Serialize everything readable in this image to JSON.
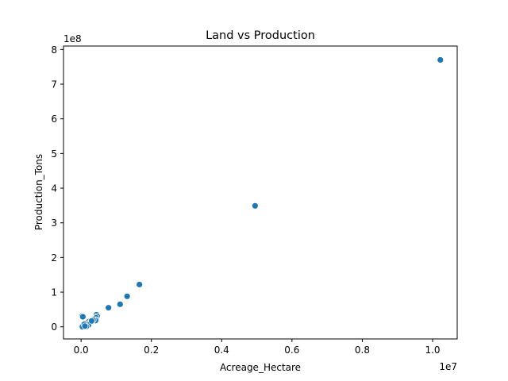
{
  "chart_data": {
    "type": "scatter",
    "title": "Land vs Production",
    "xlabel": "Acreage_Hectare",
    "ylabel": "Production_Tons",
    "x_offset_label": "1e7",
    "y_offset_label": "1e8",
    "xlim": [
      -0.05,
      1.07
    ],
    "ylim": [
      -0.35,
      8.1
    ],
    "x_ticks": [
      0.0,
      0.2,
      0.4,
      0.6,
      0.8,
      1.0
    ],
    "x_tick_labels": [
      "0.0",
      "0.2",
      "0.4",
      "0.6",
      "0.8",
      "1.0"
    ],
    "y_ticks": [
      0,
      1,
      2,
      3,
      4,
      5,
      6,
      7,
      8
    ],
    "y_tick_labels": [
      "0",
      "1",
      "2",
      "3",
      "4",
      "5",
      "6",
      "7",
      "8"
    ],
    "grid": false,
    "marker_color": "#1f77b4",
    "points": [
      {
        "x": 1.022,
        "y": 7.7
      },
      {
        "x": 0.495,
        "y": 3.49
      },
      {
        "x": 0.166,
        "y": 1.22
      },
      {
        "x": 0.131,
        "y": 0.88
      },
      {
        "x": 0.111,
        "y": 0.65
      },
      {
        "x": 0.078,
        "y": 0.55
      },
      {
        "x": 0.044,
        "y": 0.35
      },
      {
        "x": 0.046,
        "y": 0.3
      },
      {
        "x": 0.043,
        "y": 0.26
      },
      {
        "x": 0.043,
        "y": 0.2
      },
      {
        "x": 0.041,
        "y": 0.18
      },
      {
        "x": 0.003,
        "y": 0.31
      },
      {
        "x": 0.005,
        "y": 0.29
      },
      {
        "x": 0.002,
        "y": 0.01
      },
      {
        "x": 0.004,
        "y": 0.0
      },
      {
        "x": 0.013,
        "y": 0.03
      },
      {
        "x": 0.016,
        "y": 0.08
      },
      {
        "x": 0.018,
        "y": 0.12
      },
      {
        "x": 0.022,
        "y": 0.15
      },
      {
        "x": 0.026,
        "y": 0.13
      },
      {
        "x": 0.021,
        "y": 0.05
      },
      {
        "x": 0.015,
        "y": 0.01
      },
      {
        "x": 0.034,
        "y": 0.2
      },
      {
        "x": 0.03,
        "y": 0.17
      },
      {
        "x": 0.009,
        "y": 0.07
      },
      {
        "x": 0.011,
        "y": 0.02
      }
    ]
  }
}
